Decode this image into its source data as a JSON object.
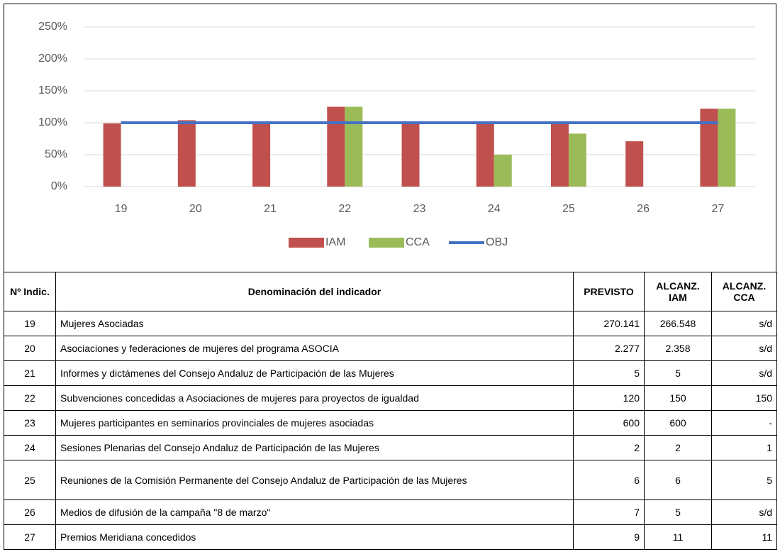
{
  "chart_data": {
    "type": "bar",
    "categories": [
      "19",
      "20",
      "21",
      "22",
      "23",
      "24",
      "25",
      "26",
      "27"
    ],
    "series": [
      {
        "name": "IAM",
        "color": "#c0504d",
        "type": "bar",
        "values": [
          99,
          104,
          100,
          125,
          100,
          100,
          100,
          71,
          122
        ]
      },
      {
        "name": "CCA",
        "color": "#9bbb59",
        "type": "bar",
        "values": [
          null,
          null,
          null,
          125,
          null,
          50,
          83,
          null,
          122
        ]
      },
      {
        "name": "OBJ",
        "color": "#4472c4",
        "type": "line",
        "values": [
          100,
          100,
          100,
          100,
          100,
          100,
          100,
          100,
          100
        ]
      }
    ],
    "ylim": [
      0,
      250
    ],
    "yticks": [
      {
        "value": 0,
        "label": "0%"
      },
      {
        "value": 50,
        "label": "50%"
      },
      {
        "value": 100,
        "label": "100%"
      },
      {
        "value": 150,
        "label": "150%"
      },
      {
        "value": 200,
        "label": "200%"
      },
      {
        "value": 250,
        "label": "250%"
      }
    ],
    "grid": true,
    "legend": "bottom"
  },
  "table": {
    "headers": [
      "Nº Indic.",
      "Denominación del indicador",
      "PREVISTO",
      "ALCANZ. IAM",
      "ALCANZ. CCA"
    ],
    "rows": [
      [
        "19",
        "Mujeres Asociadas",
        "270.141",
        "266.548",
        "s/d"
      ],
      [
        "20",
        "Asociaciones y federaciones de mujeres del programa ASOCIA",
        "2.277",
        "2.358",
        "s/d"
      ],
      [
        "21",
        "Informes y dictámenes del Consejo Andaluz de Participación de las Mujeres",
        "5",
        "5",
        "s/d"
      ],
      [
        "22",
        "Subvenciones concedidas a Asociaciones de mujeres para proyectos de igualdad",
        "120",
        "150",
        "150"
      ],
      [
        "23",
        "Mujeres participantes en seminarios provinciales de mujeres asociadas",
        "600",
        "600",
        "-"
      ],
      [
        "24",
        "Sesiones Plenarias del Consejo Andaluz de Participación de las Mujeres",
        "2",
        "2",
        "1"
      ],
      [
        "25",
        "Reuniones de la Comisión Permanente del Consejo Andaluz de Participación de las Mujeres",
        "6",
        "6",
        "5"
      ],
      [
        "26",
        "Medios de difusión de la campaña \"8 de marzo\"",
        "7",
        "5",
        "s/d"
      ],
      [
        "27",
        "Premios Meridiana concedidos",
        "9",
        "11",
        "11"
      ]
    ]
  }
}
